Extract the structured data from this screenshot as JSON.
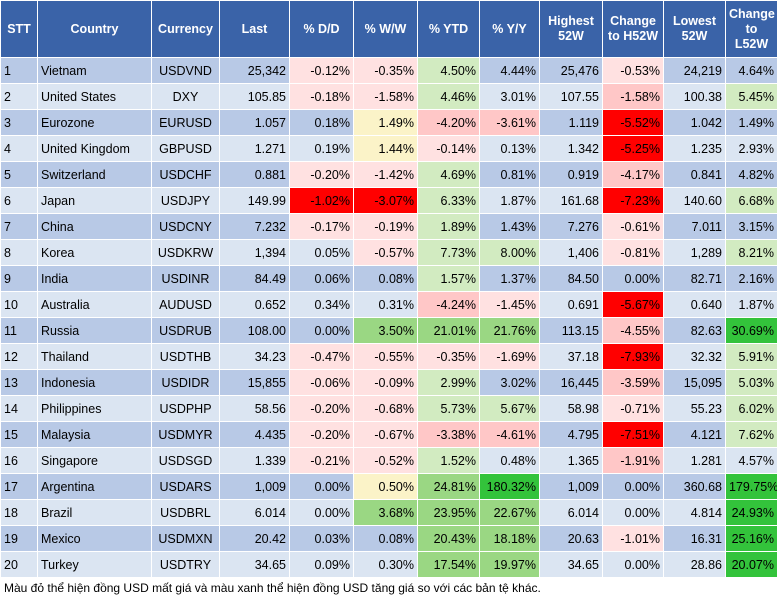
{
  "colors": {
    "header_bg": "#3a63a8",
    "row_odd": "#b8c9e6",
    "row_even": "#dbe5f2",
    "red_strong": "#ff0000",
    "red_light": "#ffc7c7",
    "red_pale": "#ffe1e1",
    "green_strong": "#33c33b",
    "green_mid": "#9ad783",
    "green_light": "#d2ebc1",
    "yellow_pale": "#fbf3c8"
  },
  "headers": [
    "STT",
    "Country",
    "Currency",
    "Last",
    "% D/D",
    "% W/W",
    "% YTD",
    "% Y/Y",
    "Highest 52W",
    "Change to H52W",
    "Lowest 52W",
    "Change to L52W"
  ],
  "rows": [
    {
      "stt": "1",
      "country": "Vietnam",
      "currency": "USDVND",
      "last": "25,342",
      "dd": "-0.12%",
      "ww": "-0.35%",
      "ytd": "4.50%",
      "yy": "4.44%",
      "high": "25,476",
      "chigh": "-0.53%",
      "low": "24,219",
      "clow": "4.64%"
    },
    {
      "stt": "2",
      "country": "United States",
      "currency": "DXY",
      "last": "105.85",
      "dd": "-0.18%",
      "ww": "-1.58%",
      "ytd": "4.46%",
      "yy": "3.01%",
      "high": "107.55",
      "chigh": "-1.58%",
      "low": "100.38",
      "clow": "5.45%"
    },
    {
      "stt": "3",
      "country": "Eurozone",
      "currency": "EURUSD",
      "last": "1.057",
      "dd": "0.18%",
      "ww": "1.49%",
      "ytd": "-4.20%",
      "yy": "-3.61%",
      "high": "1.119",
      "chigh": "-5.52%",
      "low": "1.042",
      "clow": "1.49%"
    },
    {
      "stt": "4",
      "country": "United Kingdom",
      "currency": "GBPUSD",
      "last": "1.271",
      "dd": "0.19%",
      "ww": "1.44%",
      "ytd": "-0.14%",
      "yy": "0.13%",
      "high": "1.342",
      "chigh": "-5.25%",
      "low": "1.235",
      "clow": "2.93%"
    },
    {
      "stt": "5",
      "country": "Switzerland",
      "currency": "USDCHF",
      "last": "0.881",
      "dd": "-0.20%",
      "ww": "-1.42%",
      "ytd": "4.69%",
      "yy": "0.81%",
      "high": "0.919",
      "chigh": "-4.17%",
      "low": "0.841",
      "clow": "4.82%"
    },
    {
      "stt": "6",
      "country": "Japan",
      "currency": "USDJPY",
      "last": "149.99",
      "dd": "-1.02%",
      "ww": "-3.07%",
      "ytd": "6.33%",
      "yy": "1.87%",
      "high": "161.68",
      "chigh": "-7.23%",
      "low": "140.60",
      "clow": "6.68%"
    },
    {
      "stt": "7",
      "country": "China",
      "currency": "USDCNY",
      "last": "7.232",
      "dd": "-0.17%",
      "ww": "-0.19%",
      "ytd": "1.89%",
      "yy": "1.43%",
      "high": "7.276",
      "chigh": "-0.61%",
      "low": "7.011",
      "clow": "3.15%"
    },
    {
      "stt": "8",
      "country": "Korea",
      "currency": "USDKRW",
      "last": "1,394",
      "dd": "0.05%",
      "ww": "-0.57%",
      "ytd": "7.73%",
      "yy": "8.00%",
      "high": "1,406",
      "chigh": "-0.81%",
      "low": "1,289",
      "clow": "8.21%"
    },
    {
      "stt": "9",
      "country": "India",
      "currency": "USDINR",
      "last": "84.49",
      "dd": "0.06%",
      "ww": "0.08%",
      "ytd": "1.57%",
      "yy": "1.37%",
      "high": "84.50",
      "chigh": "0.00%",
      "low": "82.71",
      "clow": "2.16%"
    },
    {
      "stt": "10",
      "country": "Australia",
      "currency": "AUDUSD",
      "last": "0.652",
      "dd": "0.34%",
      "ww": "0.31%",
      "ytd": "-4.24%",
      "yy": "-1.45%",
      "high": "0.691",
      "chigh": "-5.67%",
      "low": "0.640",
      "clow": "1.87%"
    },
    {
      "stt": "11",
      "country": "Russia",
      "currency": "USDRUB",
      "last": "108.00",
      "dd": "0.00%",
      "ww": "3.50%",
      "ytd": "21.01%",
      "yy": "21.76%",
      "high": "113.15",
      "chigh": "-4.55%",
      "low": "82.63",
      "clow": "30.69%"
    },
    {
      "stt": "12",
      "country": "Thailand",
      "currency": "USDTHB",
      "last": "34.23",
      "dd": "-0.47%",
      "ww": "-0.55%",
      "ytd": "-0.35%",
      "yy": "-1.69%",
      "high": "37.18",
      "chigh": "-7.93%",
      "low": "32.32",
      "clow": "5.91%"
    },
    {
      "stt": "13",
      "country": "Indonesia",
      "currency": "USDIDR",
      "last": "15,855",
      "dd": "-0.06%",
      "ww": "-0.09%",
      "ytd": "2.99%",
      "yy": "3.02%",
      "high": "16,445",
      "chigh": "-3.59%",
      "low": "15,095",
      "clow": "5.03%"
    },
    {
      "stt": "14",
      "country": "Philippines",
      "currency": "USDPHP",
      "last": "58.56",
      "dd": "-0.20%",
      "ww": "-0.68%",
      "ytd": "5.73%",
      "yy": "5.67%",
      "high": "58.98",
      "chigh": "-0.71%",
      "low": "55.23",
      "clow": "6.02%"
    },
    {
      "stt": "15",
      "country": "Malaysia",
      "currency": "USDMYR",
      "last": "4.435",
      "dd": "-0.20%",
      "ww": "-0.67%",
      "ytd": "-3.38%",
      "yy": "-4.61%",
      "high": "4.795",
      "chigh": "-7.51%",
      "low": "4.121",
      "clow": "7.62%"
    },
    {
      "stt": "16",
      "country": "Singapore",
      "currency": "USDSGD",
      "last": "1.339",
      "dd": "-0.21%",
      "ww": "-0.52%",
      "ytd": "1.52%",
      "yy": "0.48%",
      "high": "1.365",
      "chigh": "-1.91%",
      "low": "1.281",
      "clow": "4.57%"
    },
    {
      "stt": "17",
      "country": "Argentina",
      "currency": "USDARS",
      "last": "1,009",
      "dd": "0.00%",
      "ww": "0.50%",
      "ytd": "24.81%",
      "yy": "180.32%",
      "high": "1,009",
      "chigh": "0.00%",
      "low": "360.68",
      "clow": "179.75%"
    },
    {
      "stt": "18",
      "country": "Brazil",
      "currency": "USDBRL",
      "last": "6.014",
      "dd": "0.00%",
      "ww": "3.68%",
      "ytd": "23.95%",
      "yy": "22.67%",
      "high": "6.014",
      "chigh": "0.00%",
      "low": "4.814",
      "clow": "24.93%"
    },
    {
      "stt": "19",
      "country": "Mexico",
      "currency": "USDMXN",
      "last": "20.42",
      "dd": "0.03%",
      "ww": "0.08%",
      "ytd": "20.43%",
      "yy": "18.18%",
      "high": "20.63",
      "chigh": "-1.01%",
      "low": "16.31",
      "clow": "25.16%"
    },
    {
      "stt": "20",
      "country": "Turkey",
      "currency": "USDTRY",
      "last": "34.65",
      "dd": "0.09%",
      "ww": "0.30%",
      "ytd": "17.54%",
      "yy": "19.97%",
      "high": "34.65",
      "chigh": "0.00%",
      "low": "28.86",
      "clow": "20.07%"
    }
  ],
  "footnote": "Màu đỏ thể hiện đồng USD mất giá và màu xanh thể hiện đồng USD tăng giá so với các bản tệ khác."
}
